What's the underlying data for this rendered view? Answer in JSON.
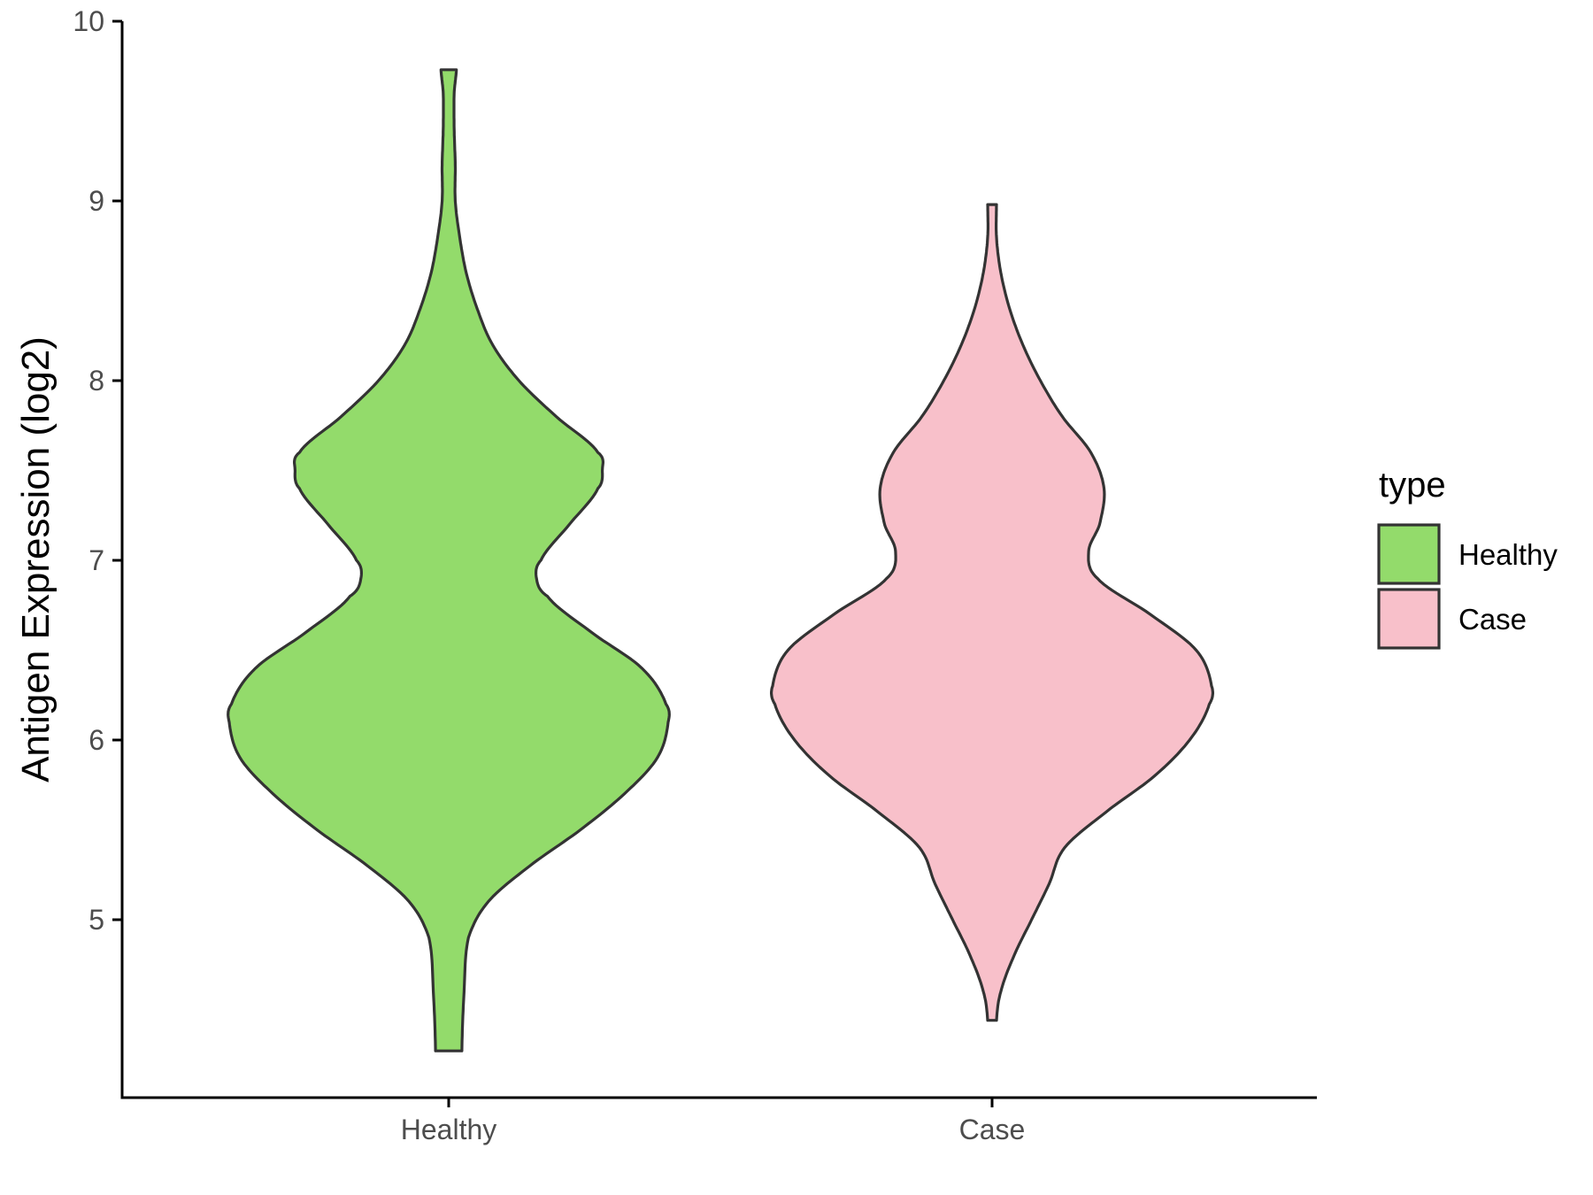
{
  "chart_data": {
    "type": "violin",
    "title": "",
    "xlabel": "",
    "ylabel": "Antigen Expression (log2)",
    "ylim": [
      4.2,
      10
    ],
    "yticks": [
      5,
      6,
      7,
      8,
      9,
      10
    ],
    "categories": [
      "Healthy",
      "Case"
    ],
    "legend": {
      "title": "type",
      "position": "right",
      "entries": [
        "Healthy",
        "Case"
      ]
    },
    "grid": false,
    "series": [
      {
        "category": "Healthy",
        "color": "#93DB6B",
        "min": 4.27,
        "max": 9.73,
        "profile": [
          [
            4.27,
            0.06
          ],
          [
            4.6,
            0.07
          ],
          [
            4.9,
            0.09
          ],
          [
            5.1,
            0.18
          ],
          [
            5.3,
            0.37
          ],
          [
            5.5,
            0.6
          ],
          [
            5.7,
            0.8
          ],
          [
            5.9,
            0.95
          ],
          [
            6.1,
            1.0
          ],
          [
            6.2,
            0.99
          ],
          [
            6.4,
            0.88
          ],
          [
            6.6,
            0.65
          ],
          [
            6.8,
            0.45
          ],
          [
            6.9,
            0.4
          ],
          [
            7.0,
            0.42
          ],
          [
            7.2,
            0.55
          ],
          [
            7.4,
            0.68
          ],
          [
            7.5,
            0.7
          ],
          [
            7.6,
            0.68
          ],
          [
            7.8,
            0.49
          ],
          [
            8.0,
            0.32
          ],
          [
            8.2,
            0.2
          ],
          [
            8.4,
            0.13
          ],
          [
            8.6,
            0.08
          ],
          [
            8.8,
            0.05
          ],
          [
            9.0,
            0.03
          ],
          [
            9.2,
            0.03
          ],
          [
            9.4,
            0.025
          ],
          [
            9.6,
            0.025
          ],
          [
            9.73,
            0.035
          ]
        ]
      },
      {
        "category": "Case",
        "color": "#F8C0CA",
        "min": 4.44,
        "max": 8.98,
        "profile": [
          [
            4.44,
            0.02
          ],
          [
            4.6,
            0.04
          ],
          [
            4.8,
            0.1
          ],
          [
            5.0,
            0.18
          ],
          [
            5.2,
            0.26
          ],
          [
            5.4,
            0.33
          ],
          [
            5.6,
            0.52
          ],
          [
            5.8,
            0.74
          ],
          [
            6.0,
            0.9
          ],
          [
            6.2,
            0.99
          ],
          [
            6.3,
            1.0
          ],
          [
            6.5,
            0.93
          ],
          [
            6.7,
            0.72
          ],
          [
            6.9,
            0.48
          ],
          [
            7.05,
            0.44
          ],
          [
            7.2,
            0.49
          ],
          [
            7.4,
            0.51
          ],
          [
            7.6,
            0.45
          ],
          [
            7.8,
            0.32
          ],
          [
            8.0,
            0.22
          ],
          [
            8.2,
            0.14
          ],
          [
            8.4,
            0.08
          ],
          [
            8.6,
            0.04
          ],
          [
            8.8,
            0.02
          ],
          [
            8.98,
            0.02
          ]
        ]
      }
    ]
  }
}
